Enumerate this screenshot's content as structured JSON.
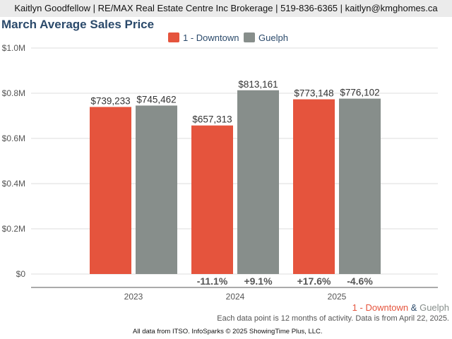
{
  "header": {
    "text": "Kaitlyn Goodfellow | RE/MAX Real Estate Centre Inc Brokerage | 519-836-6365 | kaitlyn@kmghomes.ca"
  },
  "colors": {
    "downtown": "#e5543d",
    "guelph": "#878e8b",
    "title": "#2b4a6b"
  },
  "chart_data": {
    "type": "bar",
    "title": "March Average Sales Price",
    "categories": [
      "2023",
      "2024",
      "2025"
    ],
    "series": [
      {
        "name": "1 - Downtown",
        "values": [
          739233,
          657313,
          773148
        ],
        "labels": [
          "$739,233",
          "$657,313",
          "$773,148"
        ],
        "changes": [
          "",
          "-11.1%",
          "+17.6%"
        ]
      },
      {
        "name": "Guelph",
        "values": [
          745462,
          813161,
          776102
        ],
        "labels": [
          "$745,462",
          "$813,161",
          "$776,102"
        ],
        "changes": [
          "",
          "+9.1%",
          "-4.6%"
        ]
      }
    ],
    "ylim": [
      0,
      1000000
    ],
    "yticks": [
      0,
      200000,
      400000,
      600000,
      800000,
      1000000
    ],
    "ytick_labels": [
      "$0",
      "$0.2M",
      "$0.4M",
      "$0.6M",
      "$0.8M",
      "$1.0M"
    ],
    "legend": "top-center",
    "grid": true
  },
  "footer": {
    "series_a": "1 - Downtown",
    "amp": "&",
    "series_b": "Guelph",
    "note": "Each data point is 12 months of activity. Data is from April 22, 2025.",
    "source": "All data from ITSO. InfoSparks © 2025 ShowingTime Plus, LLC."
  }
}
